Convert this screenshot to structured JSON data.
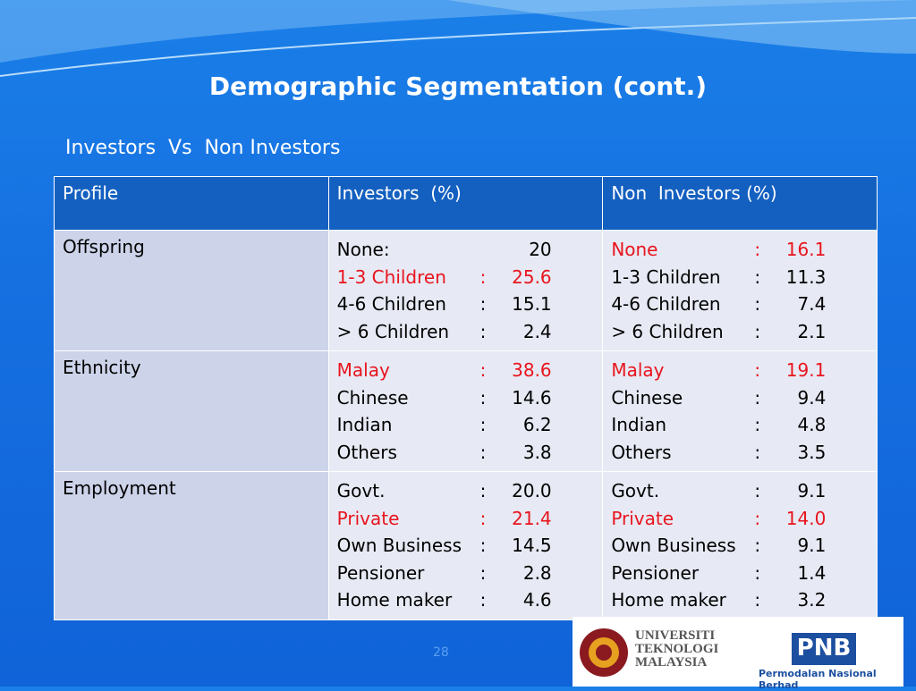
{
  "header": {
    "title": "Demographic Segmentation (cont.)",
    "subtitle": "Investors  Vs  Non Investors"
  },
  "table": {
    "columns": [
      "Profile",
      "Investors  (%)",
      "Non  Investors (%)"
    ],
    "rows": [
      {
        "profile": "Offspring",
        "investors": [
          {
            "label": "None:",
            "value": "20",
            "highlight": false
          },
          {
            "label": "1-3 Children",
            "sep": ":",
            "value": "25.6",
            "highlight": true
          },
          {
            "label": "4-6 Children",
            "sep": ":",
            "value": "15.1",
            "highlight": false
          },
          {
            "label": "> 6 Children",
            "sep": ":",
            "value": "2.4",
            "highlight": false
          }
        ],
        "non_investors": [
          {
            "label": "None",
            "sep": ":",
            "value": "16.1",
            "highlight": true
          },
          {
            "label": "1-3 Children",
            "sep": ":",
            "value": "11.3",
            "highlight": false
          },
          {
            "label": "4-6 Children",
            "sep": ":",
            "value": "7.4",
            "highlight": false
          },
          {
            "label": "> 6 Children",
            "sep": ":",
            "value": "2.1",
            "highlight": false
          }
        ]
      },
      {
        "profile": "Ethnicity",
        "investors": [
          {
            "label": "Malay",
            "sep": ":",
            "value": "38.6",
            "highlight": true
          },
          {
            "label": "Chinese",
            "sep": ":",
            "value": "14.6",
            "highlight": false
          },
          {
            "label": "Indian",
            "sep": ":",
            "value": "6.2",
            "highlight": false
          },
          {
            "label": "Others",
            "sep": ":",
            "value": "3.8",
            "highlight": false
          }
        ],
        "non_investors": [
          {
            "label": "Malay",
            "sep": ":",
            "value": "19.1",
            "highlight": true
          },
          {
            "label": "Chinese",
            "sep": ":",
            "value": "9.4",
            "highlight": false
          },
          {
            "label": "Indian",
            "sep": ":",
            "value": "4.8",
            "highlight": false
          },
          {
            "label": "Others",
            "sep": ":",
            "value": "3.5",
            "highlight": false
          }
        ]
      },
      {
        "profile": "Employment",
        "investors": [
          {
            "label": "Govt.",
            "sep": ":",
            "value": "20.0",
            "highlight": false
          },
          {
            "label": "Private",
            "sep": ":",
            "value": "21.4",
            "highlight": true
          },
          {
            "label": "Own Business",
            "sep": ":",
            "value": "14.5",
            "highlight": false
          },
          {
            "label": "Pensioner",
            "sep": ":",
            "value": "2.8",
            "highlight": false
          },
          {
            "label": "Home maker",
            "sep": ":",
            "value": "4.6",
            "highlight": false
          }
        ],
        "non_investors": [
          {
            "label": "Govt.",
            "sep": ":",
            "value": "9.1",
            "highlight": false
          },
          {
            "label": "Private",
            "sep": ":",
            "value": "14.0",
            "highlight": true
          },
          {
            "label": "Own Business",
            "sep": ":",
            "value": "9.1",
            "highlight": false
          },
          {
            "label": "Pensioner",
            "sep": ":",
            "value": "1.4",
            "highlight": false
          },
          {
            "label": "Home maker",
            "sep": ":",
            "value": "3.2",
            "highlight": false
          }
        ]
      }
    ]
  },
  "footer": {
    "page": "28",
    "logos": {
      "utm": [
        "UNIVERSITI",
        "TEKNOLOGI",
        "MALAYSIA"
      ],
      "pnb": "PNB",
      "pnb_name": "Permodalan Nasional Berhad"
    }
  }
}
